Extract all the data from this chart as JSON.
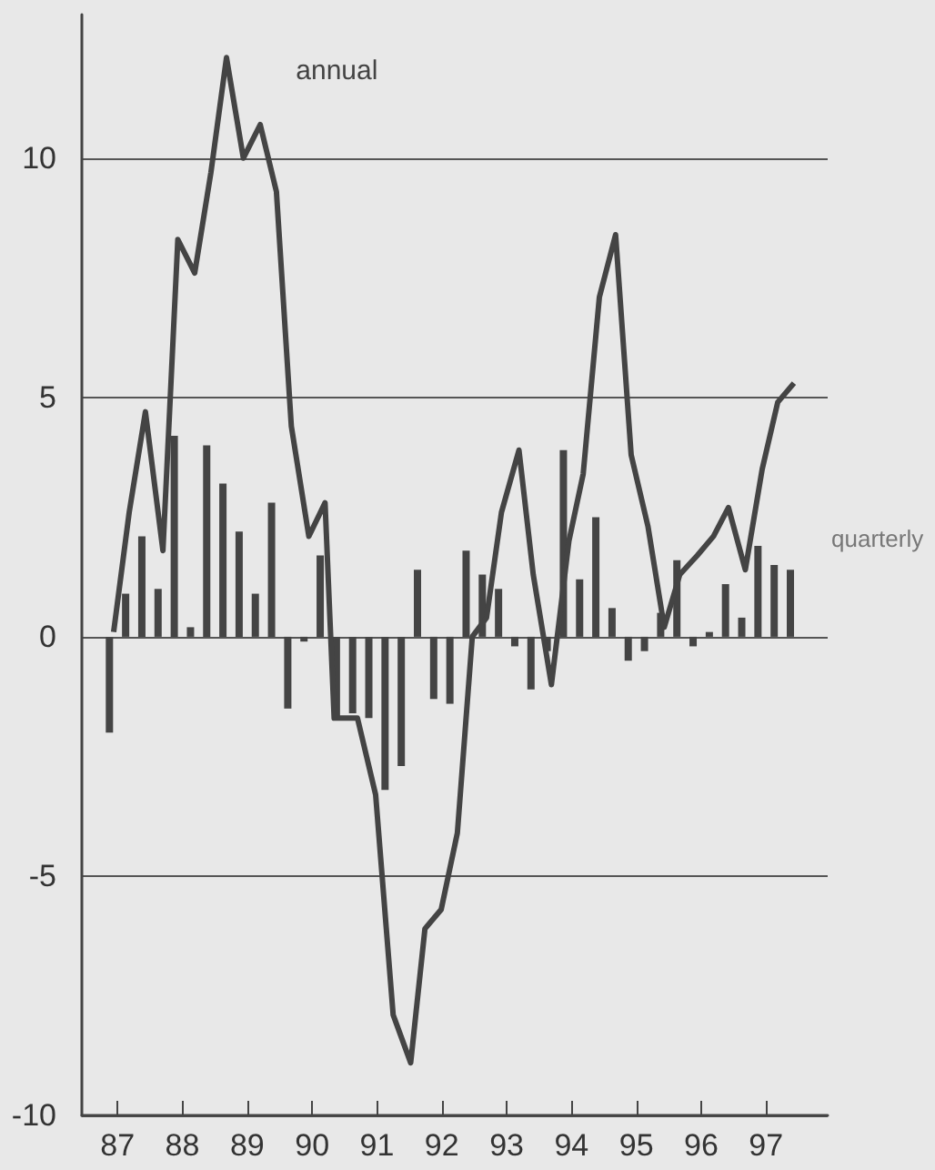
{
  "chart_data": {
    "type": "bar",
    "xlim": [
      86.45,
      97.95
    ],
    "xticks": [
      87,
      88,
      89,
      90,
      91,
      92,
      93,
      94,
      95,
      96,
      97
    ],
    "ylim": [
      -10,
      13
    ],
    "yticks": [
      -10,
      -5,
      0,
      5,
      10
    ],
    "grid": "y",
    "legend": false,
    "series": [
      {
        "name": "quarterly",
        "color": "#444444",
        "x": [
          86.875,
          87.125,
          87.375,
          87.625,
          87.875,
          88.125,
          88.375,
          88.625,
          88.875,
          89.125,
          89.375,
          89.625,
          89.875,
          90.125,
          90.375,
          90.625,
          90.875,
          91.125,
          91.375,
          91.625,
          91.875,
          92.125,
          92.375,
          92.625,
          92.875,
          93.125,
          93.375,
          93.625,
          93.875,
          94.125,
          94.375,
          94.625,
          94.875,
          95.125,
          95.375,
          95.625,
          95.875,
          96.125,
          96.375,
          96.625,
          96.875,
          97.125,
          97.375
        ],
        "values": [
          -2.0,
          0.9,
          2.1,
          1.0,
          4.2,
          0.2,
          4.0,
          3.2,
          2.2,
          0.9,
          2.8,
          -1.5,
          -0.1,
          1.7,
          -1.7,
          -1.6,
          -1.7,
          -3.2,
          -2.7,
          1.4,
          -1.3,
          -1.4,
          1.8,
          1.3,
          1.0,
          -0.2,
          -1.1,
          -0.3,
          3.9,
          1.2,
          2.5,
          0.6,
          -0.5,
          -0.3,
          0.5,
          1.6,
          -0.2,
          0.1,
          1.1,
          0.4,
          1.9,
          1.5,
          1.4
        ]
      },
      {
        "name": "annual",
        "type": "line",
        "color": "#444444",
        "marker": "none",
        "line_style": "solid",
        "x": [
          86.94,
          87.18,
          87.43,
          87.7,
          87.93,
          88.19,
          88.44,
          88.68,
          88.94,
          89.2,
          89.45,
          89.68,
          89.95,
          90.2,
          90.34,
          90.7,
          90.98,
          91.25,
          91.52,
          91.74,
          91.99,
          92.24,
          92.47,
          92.69,
          92.92,
          93.19,
          93.41,
          93.69,
          93.96,
          94.18,
          94.43,
          94.68,
          94.92,
          95.18,
          95.43,
          95.67,
          95.94,
          96.19,
          96.42,
          96.68,
          96.94,
          97.18,
          97.43
        ],
        "values": [
          0.1,
          2.6,
          4.7,
          1.8,
          8.3,
          7.6,
          9.7,
          12.1,
          10.0,
          10.7,
          9.3,
          4.4,
          2.1,
          2.8,
          -1.7,
          -1.7,
          -3.3,
          -7.9,
          -8.9,
          -6.1,
          -5.7,
          -4.1,
          0.0,
          0.4,
          2.6,
          3.9,
          1.3,
          -1.0,
          2.0,
          3.4,
          7.1,
          8.4,
          3.8,
          2.3,
          0.2,
          1.3,
          1.7,
          2.1,
          2.7,
          1.4,
          3.5,
          4.9,
          5.3
        ]
      }
    ]
  }
}
